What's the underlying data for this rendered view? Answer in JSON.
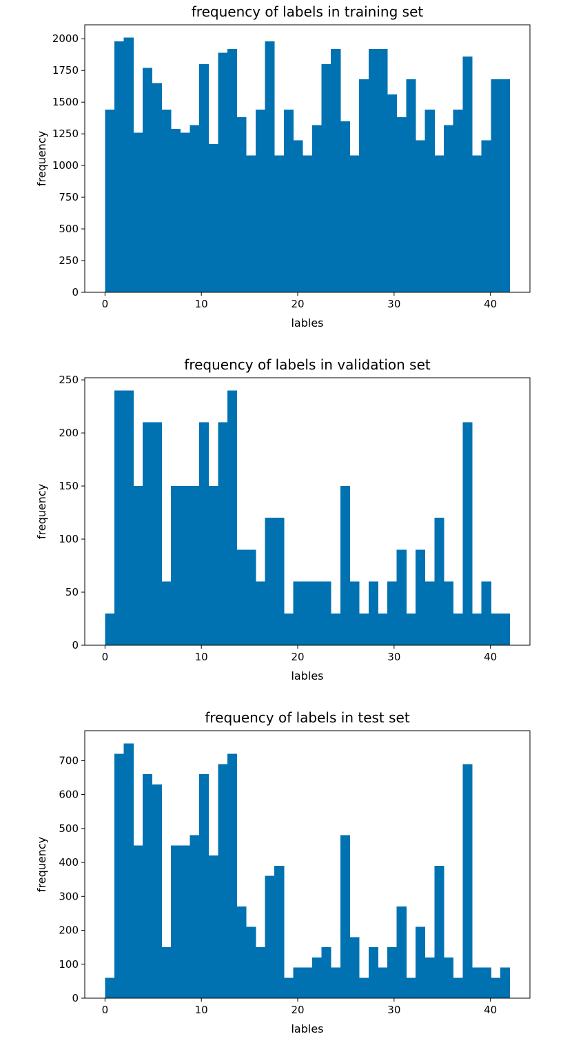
{
  "colors": {
    "bar": "#0072B2",
    "axis": "#000000",
    "background": "#ffffff"
  },
  "chart_data": [
    {
      "type": "bar",
      "title": "frequency of labels in training set",
      "xlabel": "lables",
      "ylabel": "frequency",
      "xlim": [
        -2.1,
        44.1
      ],
      "ylim": [
        0,
        2110
      ],
      "x_range": [
        0,
        42
      ],
      "xticks": [
        0,
        10,
        20,
        30,
        40
      ],
      "yticks": [
        0,
        250,
        500,
        750,
        1000,
        1250,
        1500,
        1750,
        2000
      ],
      "values": [
        1440,
        1980,
        2010,
        1260,
        1770,
        1650,
        1440,
        1290,
        1260,
        1320,
        1800,
        1170,
        1890,
        1920,
        1380,
        1080,
        1440,
        1980,
        1080,
        1440,
        1200,
        1080,
        1320,
        1800,
        1920,
        1350,
        1080,
        1680,
        1920,
        1920,
        1560,
        1380,
        1680,
        1200,
        1440,
        1080,
        1320,
        1440,
        1860,
        1080,
        1200,
        1680,
        1680
      ]
    },
    {
      "type": "bar",
      "title": "frequency of labels in validation set",
      "xlabel": "lables",
      "ylabel": "frequency",
      "xlim": [
        -2.1,
        44.1
      ],
      "ylim": [
        0,
        252
      ],
      "x_range": [
        0,
        42
      ],
      "xticks": [
        0,
        10,
        20,
        30,
        40
      ],
      "yticks": [
        0,
        50,
        100,
        150,
        200,
        250
      ],
      "values": [
        30,
        240,
        240,
        150,
        210,
        210,
        60,
        150,
        150,
        150,
        210,
        150,
        210,
        240,
        90,
        90,
        60,
        120,
        120,
        30,
        60,
        60,
        60,
        60,
        30,
        150,
        60,
        30,
        60,
        30,
        60,
        90,
        30,
        90,
        60,
        120,
        60,
        30,
        210,
        30,
        60,
        30,
        30
      ]
    },
    {
      "type": "bar",
      "title": "frequency of labels in test set",
      "xlabel": "lables",
      "ylabel": "frequency",
      "xlim": [
        -2.1,
        44.1
      ],
      "ylim": [
        0,
        788
      ],
      "x_range": [
        0,
        42
      ],
      "xticks": [
        0,
        10,
        20,
        30,
        40
      ],
      "yticks": [
        0,
        100,
        200,
        300,
        400,
        500,
        600,
        700
      ],
      "values": [
        60,
        720,
        750,
        450,
        660,
        630,
        150,
        450,
        450,
        480,
        660,
        420,
        690,
        720,
        270,
        210,
        150,
        360,
        390,
        60,
        90,
        90,
        120,
        150,
        90,
        480,
        180,
        60,
        150,
        90,
        150,
        270,
        60,
        210,
        120,
        390,
        120,
        60,
        690,
        90,
        90,
        60,
        90
      ]
    }
  ]
}
